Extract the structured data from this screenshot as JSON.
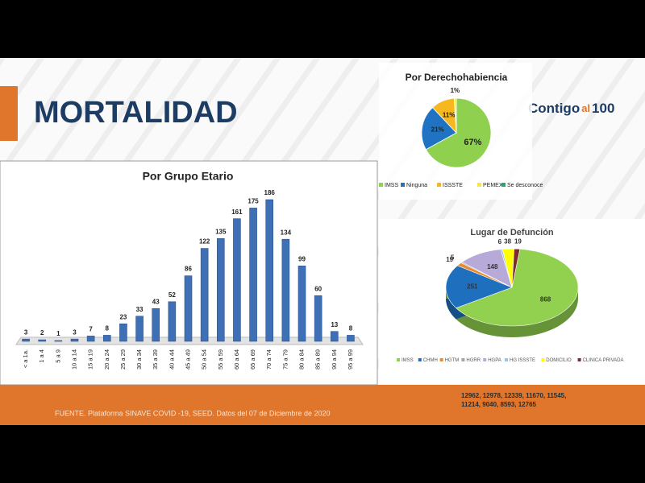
{
  "header": {
    "title": "MORTALIDAD",
    "logo": [
      "Contigo",
      "al",
      "100"
    ]
  },
  "footer": {
    "source": "FUENTE. Plataforma SINAVE COVID -19, SEED. Datos del 07 de Diciembre de 2020",
    "note": [
      "12962, 12978, 12339, 11670, 11545,",
      "11214, 9040, 8593, 12765"
    ]
  },
  "chart_data": [
    {
      "type": "bar",
      "title": "Por Grupo Etario",
      "color": "#3f6fb5",
      "categories": [
        "< a 1a.",
        "1 a 4",
        "5 a 9",
        "10 a 14",
        "15 a 19",
        "20 a 24",
        "25 a 29",
        "30 a 34",
        "35 a 39",
        "40 a 44",
        "45 a 49",
        "50 a 54",
        "55 a 59",
        "60 a 64",
        "65 a 69",
        "70 a 74",
        "75 a 79",
        "80 a 84",
        "85 a 89",
        "90 a 94",
        "95 a 99"
      ],
      "values": [
        3,
        2,
        1,
        3,
        7,
        8,
        23,
        33,
        43,
        52,
        86,
        122,
        135,
        161,
        175,
        186,
        134,
        99,
        60,
        13,
        8
      ]
    },
    {
      "type": "pie",
      "title": "Por Derechohabiencia",
      "categories": [
        "IMSS",
        "Ninguna",
        "ISSSTE",
        "PEMEX",
        "Se desconoce"
      ],
      "values": [
        67,
        21,
        11,
        1,
        0
      ],
      "value_labels": [
        "67%",
        "21%",
        "11%",
        "1%",
        null
      ],
      "colors": [
        "#8fd14f",
        "#1f73c2",
        "#f6b81e",
        "#f5e94a",
        "#2fa36b"
      ]
    },
    {
      "type": "pie3d",
      "title": "Lugar de Defunción",
      "categories": [
        "IMSS",
        "CHMH",
        "HGTM",
        "HGRR",
        "HGPA",
        "HG ISSSTE",
        "DOMICILIO",
        "CLINICA PRIVADA"
      ],
      "values": [
        868,
        251,
        19,
        5,
        148,
        6,
        38,
        19
      ],
      "colors": [
        "#92d050",
        "#1f6fbf",
        "#e98a2e",
        "#a5a5a5",
        "#b7a9d8",
        "#9dc3e6",
        "#ffff00",
        "#7b2c2c"
      ]
    }
  ]
}
